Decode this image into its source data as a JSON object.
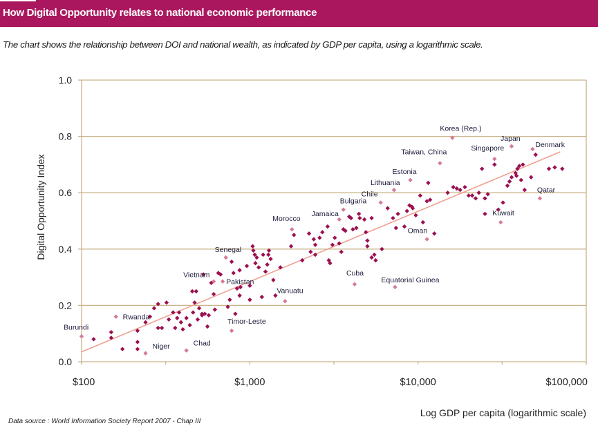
{
  "header": {
    "title": "How Digital Opportunity relates to national economic performance",
    "color": "#ab175e"
  },
  "subtitle": "The chart shows the relationship between DOI and national wealth, as indicated by GDP per capita, using a logarithmic scale.",
  "source": "Data source : World Information Society Report 2007 - Chap III",
  "chart_data": {
    "type": "scatter",
    "title": "How Digital Opportunity relates to national economic performance",
    "xlabel": "Log GDP per capita (logarithmic scale)",
    "ylabel": "Digital Opportunity Index",
    "x_scale": "log",
    "xlim": [
      100,
      100000
    ],
    "ylim": [
      0,
      1.0
    ],
    "x_ticks": [
      100,
      1000,
      10000,
      100000
    ],
    "x_tick_labels": [
      "$100",
      "$1,000",
      "$10,000",
      "$100,000"
    ],
    "y_ticks": [
      0,
      0.2,
      0.4,
      0.6,
      0.8,
      1.0
    ],
    "y_tick_labels": [
      "0.0",
      "0.2",
      "0.4",
      "0.6",
      "0.8",
      "1.0"
    ],
    "grid": "horizontal",
    "colors": {
      "point": "#9b1050",
      "highlight": "#d67a97",
      "trend": "#f0a090",
      "axis": "#c9b48a"
    },
    "trendline": {
      "points": [
        [
          100,
          0.035
        ],
        [
          70000,
          0.745
        ]
      ]
    },
    "labeled_points": [
      {
        "label": "Burundi",
        "x": 100,
        "y": 0.09
      },
      {
        "label": "Rwanda",
        "x": 160,
        "y": 0.16
      },
      {
        "label": "Niger",
        "x": 240,
        "y": 0.03
      },
      {
        "label": "Chad",
        "x": 420,
        "y": 0.04
      },
      {
        "label": "Vietnam",
        "x": 610,
        "y": 0.285
      },
      {
        "label": "Pakistan",
        "x": 690,
        "y": 0.285
      },
      {
        "label": "Senegal",
        "x": 720,
        "y": 0.37
      },
      {
        "label": "Timor-Leste",
        "x": 780,
        "y": 0.11
      },
      {
        "label": "Vanuatu",
        "x": 1620,
        "y": 0.215
      },
      {
        "label": "Morocco",
        "x": 1780,
        "y": 0.47
      },
      {
        "label": "Jamaica",
        "x": 3400,
        "y": 0.505
      },
      {
        "label": "Bulgaria",
        "x": 3600,
        "y": 0.54
      },
      {
        "label": "Cuba",
        "x": 4200,
        "y": 0.275
      },
      {
        "label": "Chile",
        "x": 6000,
        "y": 0.565
      },
      {
        "label": "Lithuania",
        "x": 7200,
        "y": 0.61
      },
      {
        "label": "Equatorial Guinea",
        "x": 7300,
        "y": 0.265
      },
      {
        "label": "Estonia",
        "x": 9000,
        "y": 0.645
      },
      {
        "label": "Oman",
        "x": 11300,
        "y": 0.435
      },
      {
        "label": "Taiwan, China",
        "x": 13500,
        "y": 0.705
      },
      {
        "label": "Korea (Rep.)",
        "x": 16000,
        "y": 0.795
      },
      {
        "label": "Singapore",
        "x": 28500,
        "y": 0.72
      },
      {
        "label": "Kuwait",
        "x": 31000,
        "y": 0.495
      },
      {
        "label": "Japan",
        "x": 36000,
        "y": 0.765
      },
      {
        "label": "Qatar",
        "x": 53000,
        "y": 0.58
      },
      {
        "label": "Denmark",
        "x": 48000,
        "y": 0.755
      }
    ],
    "points": [
      [
        118,
        0.08
      ],
      [
        150,
        0.105
      ],
      [
        150,
        0.085
      ],
      [
        175,
        0.045
      ],
      [
        215,
        0.045
      ],
      [
        215,
        0.07
      ],
      [
        215,
        0.11
      ],
      [
        240,
        0.14
      ],
      [
        255,
        0.16
      ],
      [
        270,
        0.19
      ],
      [
        285,
        0.205
      ],
      [
        285,
        0.12
      ],
      [
        300,
        0.12
      ],
      [
        320,
        0.21
      ],
      [
        330,
        0.15
      ],
      [
        350,
        0.175
      ],
      [
        360,
        0.12
      ],
      [
        370,
        0.155
      ],
      [
        380,
        0.175
      ],
      [
        390,
        0.14
      ],
      [
        400,
        0.115
      ],
      [
        420,
        0.155
      ],
      [
        440,
        0.13
      ],
      [
        455,
        0.25
      ],
      [
        460,
        0.175
      ],
      [
        470,
        0.21
      ],
      [
        480,
        0.25
      ],
      [
        490,
        0.15
      ],
      [
        500,
        0.19
      ],
      [
        520,
        0.17
      ],
      [
        520,
        0.165
      ],
      [
        530,
        0.31
      ],
      [
        540,
        0.17
      ],
      [
        560,
        0.125
      ],
      [
        570,
        0.165
      ],
      [
        590,
        0.28
      ],
      [
        610,
        0.24
      ],
      [
        620,
        0.185
      ],
      [
        650,
        0.315
      ],
      [
        670,
        0.31
      ],
      [
        740,
        0.195
      ],
      [
        760,
        0.22
      ],
      [
        780,
        0.355
      ],
      [
        800,
        0.315
      ],
      [
        820,
        0.17
      ],
      [
        840,
        0.26
      ],
      [
        870,
        0.325
      ],
      [
        870,
        0.235
      ],
      [
        880,
        0.265
      ],
      [
        960,
        0.34
      ],
      [
        1000,
        0.27
      ],
      [
        1000,
        0.22
      ],
      [
        1040,
        0.41
      ],
      [
        1050,
        0.395
      ],
      [
        1070,
        0.38
      ],
      [
        1080,
        0.35
      ],
      [
        1100,
        0.37
      ],
      [
        1130,
        0.335
      ],
      [
        1180,
        0.23
      ],
      [
        1200,
        0.38
      ],
      [
        1240,
        0.32
      ],
      [
        1270,
        0.345
      ],
      [
        1290,
        0.38
      ],
      [
        1300,
        0.395
      ],
      [
        1330,
        0.365
      ],
      [
        1380,
        0.29
      ],
      [
        1420,
        0.235
      ],
      [
        1520,
        0.335
      ],
      [
        1760,
        0.41
      ],
      [
        1830,
        0.45
      ],
      [
        2050,
        0.36
      ],
      [
        2250,
        0.455
      ],
      [
        2300,
        0.39
      ],
      [
        2400,
        0.435
      ],
      [
        2450,
        0.415
      ],
      [
        2450,
        0.38
      ],
      [
        2600,
        0.44
      ],
      [
        2700,
        0.46
      ],
      [
        2900,
        0.48
      ],
      [
        2950,
        0.36
      ],
      [
        3000,
        0.35
      ],
      [
        3100,
        0.415
      ],
      [
        3200,
        0.44
      ],
      [
        3400,
        0.42
      ],
      [
        3500,
        0.39
      ],
      [
        3600,
        0.47
      ],
      [
        3700,
        0.465
      ],
      [
        3900,
        0.515
      ],
      [
        4000,
        0.51
      ],
      [
        4100,
        0.47
      ],
      [
        4300,
        0.475
      ],
      [
        4450,
        0.525
      ],
      [
        4500,
        0.51
      ],
      [
        4800,
        0.505
      ],
      [
        4900,
        0.46
      ],
      [
        5000,
        0.43
      ],
      [
        5000,
        0.41
      ],
      [
        5300,
        0.51
      ],
      [
        5300,
        0.37
      ],
      [
        5500,
        0.38
      ],
      [
        5600,
        0.36
      ],
      [
        6100,
        0.4
      ],
      [
        6600,
        0.545
      ],
      [
        7100,
        0.51
      ],
      [
        7400,
        0.475
      ],
      [
        7600,
        0.525
      ],
      [
        8300,
        0.48
      ],
      [
        8600,
        0.535
      ],
      [
        8900,
        0.555
      ],
      [
        9200,
        0.55
      ],
      [
        9300,
        0.545
      ],
      [
        9700,
        0.52
      ],
      [
        10300,
        0.59
      ],
      [
        10700,
        0.495
      ],
      [
        11300,
        0.57
      ],
      [
        11800,
        0.575
      ],
      [
        11500,
        0.635
      ],
      [
        12500,
        0.455
      ],
      [
        15000,
        0.6
      ],
      [
        16200,
        0.62
      ],
      [
        17000,
        0.615
      ],
      [
        17800,
        0.61
      ],
      [
        19000,
        0.62
      ],
      [
        20000,
        0.59
      ],
      [
        21000,
        0.59
      ],
      [
        22000,
        0.58
      ],
      [
        23000,
        0.6
      ],
      [
        24000,
        0.685
      ],
      [
        25000,
        0.525
      ],
      [
        25000,
        0.58
      ],
      [
        26000,
        0.595
      ],
      [
        28500,
        0.7
      ],
      [
        30000,
        0.54
      ],
      [
        32000,
        0.565
      ],
      [
        34000,
        0.625
      ],
      [
        35000,
        0.64
      ],
      [
        36000,
        0.655
      ],
      [
        38000,
        0.67
      ],
      [
        38500,
        0.66
      ],
      [
        39000,
        0.685
      ],
      [
        40000,
        0.695
      ],
      [
        41000,
        0.645
      ],
      [
        42000,
        0.7
      ],
      [
        43000,
        0.61
      ],
      [
        47000,
        0.655
      ],
      [
        50000,
        0.735
      ],
      [
        60000,
        0.685
      ],
      [
        65000,
        0.69
      ],
      [
        72000,
        0.685
      ]
    ]
  }
}
